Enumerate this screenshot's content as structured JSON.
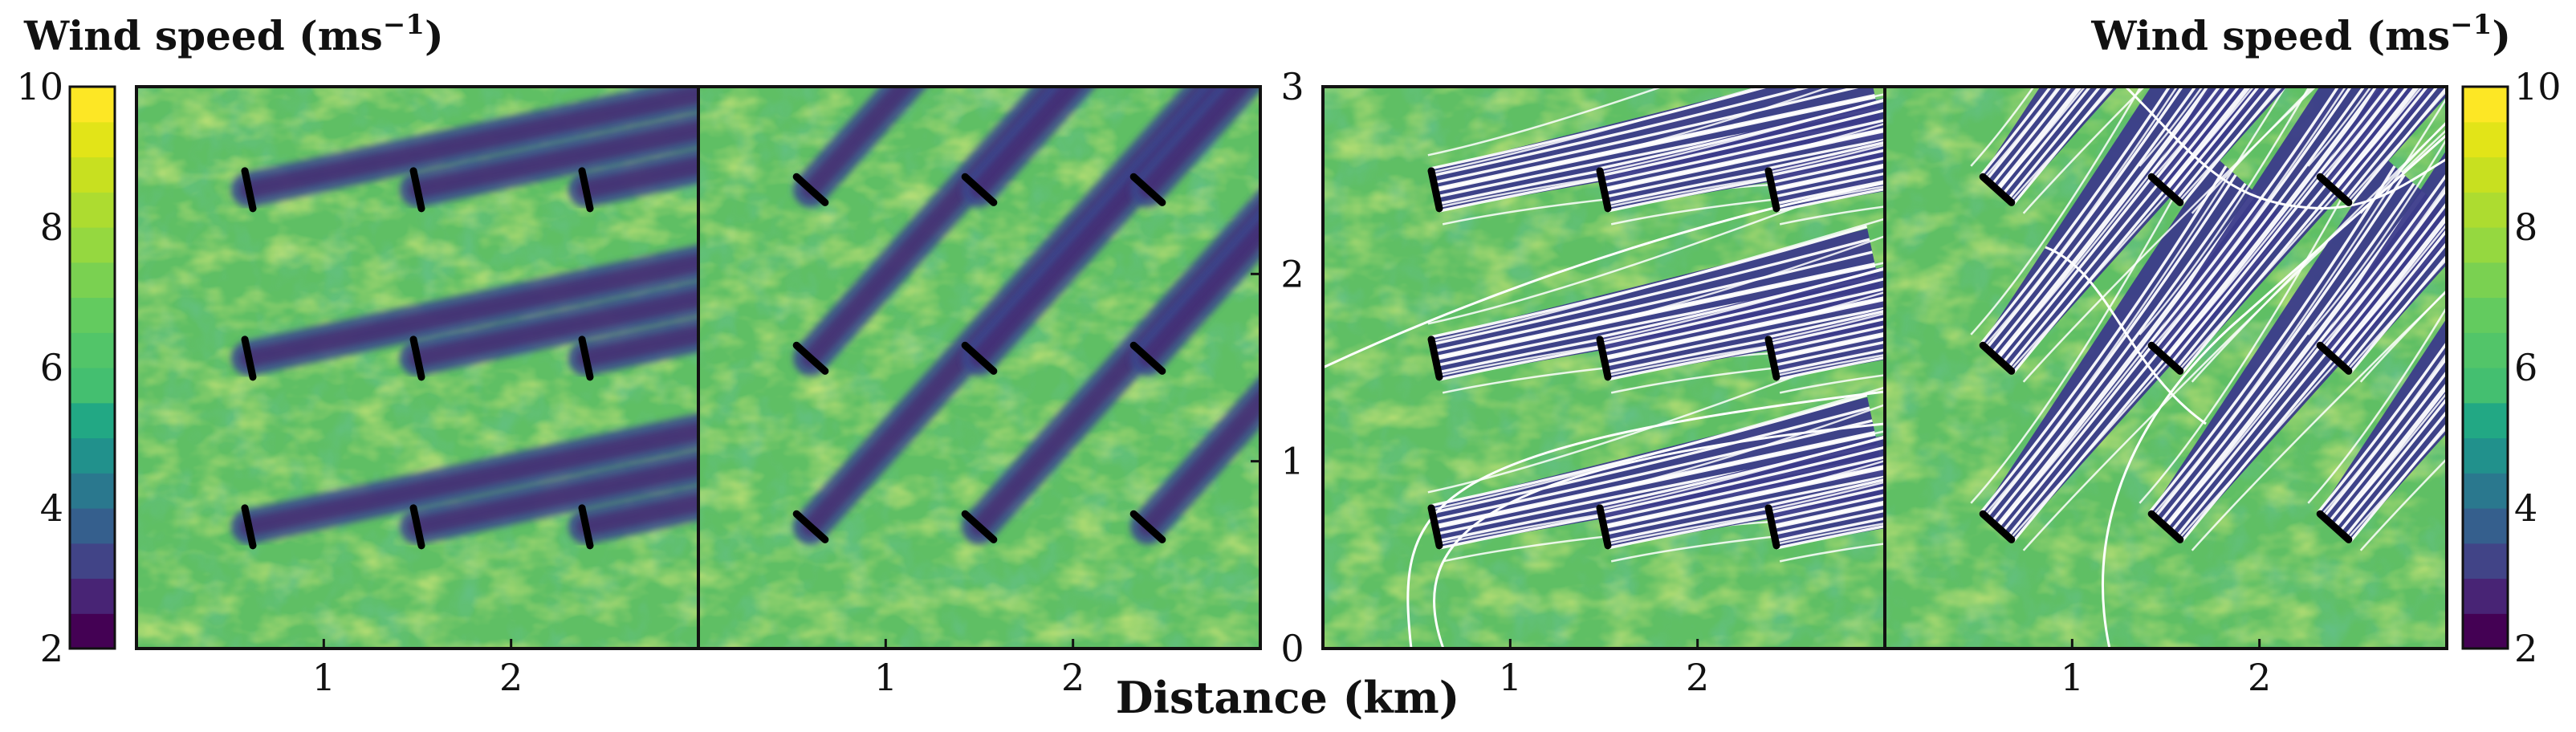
{
  "chart_data": [
    {
      "type": "heatmap",
      "panel": "left-1",
      "colorbar": {
        "title": "Wind speed (ms",
        "title_exp": "−1",
        "title_close": ")",
        "range": [
          2,
          10
        ],
        "ticks": [
          "2",
          "4",
          "6",
          "8",
          "10"
        ],
        "levels": 16,
        "colormap": "viridis"
      },
      "xticks": [
        {
          "v": 1,
          "label": "1"
        },
        {
          "v": 2,
          "label": "2"
        }
      ],
      "xlim": [
        0,
        3
      ],
      "ylim": [
        0,
        3
      ],
      "turbines": [
        [
          0.6,
          0.65
        ],
        [
          1.5,
          0.65
        ],
        [
          2.4,
          0.65
        ],
        [
          0.6,
          1.55
        ],
        [
          1.5,
          1.55
        ],
        [
          2.4,
          1.55
        ],
        [
          0.6,
          2.45
        ],
        [
          1.5,
          2.45
        ],
        [
          2.4,
          2.45
        ]
      ],
      "wake_direction_deg": 12,
      "streamlines": false
    },
    {
      "type": "heatmap",
      "panel": "left-2",
      "xticks": [
        {
          "v": 1,
          "label": "1"
        },
        {
          "v": 2,
          "label": "2"
        }
      ],
      "xlim": [
        0,
        3
      ],
      "ylim": [
        0,
        3
      ],
      "yticks": [
        "0",
        "1",
        "2",
        "3"
      ],
      "turbines": [
        [
          0.6,
          0.65
        ],
        [
          1.5,
          0.65
        ],
        [
          2.4,
          0.65
        ],
        [
          0.6,
          1.55
        ],
        [
          1.5,
          1.55
        ],
        [
          2.4,
          1.55
        ],
        [
          0.6,
          2.45
        ],
        [
          1.5,
          2.45
        ],
        [
          2.4,
          2.45
        ]
      ],
      "wake_direction_deg": 48,
      "streamlines": false
    },
    {
      "type": "heatmap",
      "panel": "right-1",
      "xticks": [
        {
          "v": 1,
          "label": "1"
        },
        {
          "v": 2,
          "label": "2"
        }
      ],
      "xlim": [
        0,
        3
      ],
      "ylim": [
        0,
        3
      ],
      "turbines": [
        [
          0.6,
          0.65
        ],
        [
          1.5,
          0.65
        ],
        [
          2.4,
          0.65
        ],
        [
          0.6,
          1.55
        ],
        [
          1.5,
          1.55
        ],
        [
          2.4,
          1.55
        ],
        [
          0.6,
          2.45
        ],
        [
          1.5,
          2.45
        ],
        [
          2.4,
          2.45
        ]
      ],
      "wake_direction_deg": 12,
      "streamlines": true
    },
    {
      "type": "heatmap",
      "panel": "right-2",
      "colorbar": {
        "title": "Wind speed (ms",
        "title_exp": "−1",
        "title_close": ")",
        "range": [
          2,
          10
        ],
        "ticks": [
          "2",
          "4",
          "6",
          "8",
          "10"
        ],
        "levels": 16,
        "colormap": "viridis"
      },
      "xticks": [
        {
          "v": 1,
          "label": "1"
        },
        {
          "v": 2,
          "label": "2"
        }
      ],
      "xlim": [
        0,
        3
      ],
      "ylim": [
        0,
        3
      ],
      "turbines": [
        [
          0.6,
          0.65
        ],
        [
          1.5,
          0.65
        ],
        [
          2.4,
          0.65
        ],
        [
          0.6,
          1.55
        ],
        [
          1.5,
          1.55
        ],
        [
          2.4,
          1.55
        ],
        [
          0.6,
          2.45
        ],
        [
          1.5,
          2.45
        ],
        [
          2.4,
          2.45
        ]
      ],
      "wake_direction_deg": 48,
      "streamlines": true
    }
  ],
  "xlabel": "Distance (km)"
}
